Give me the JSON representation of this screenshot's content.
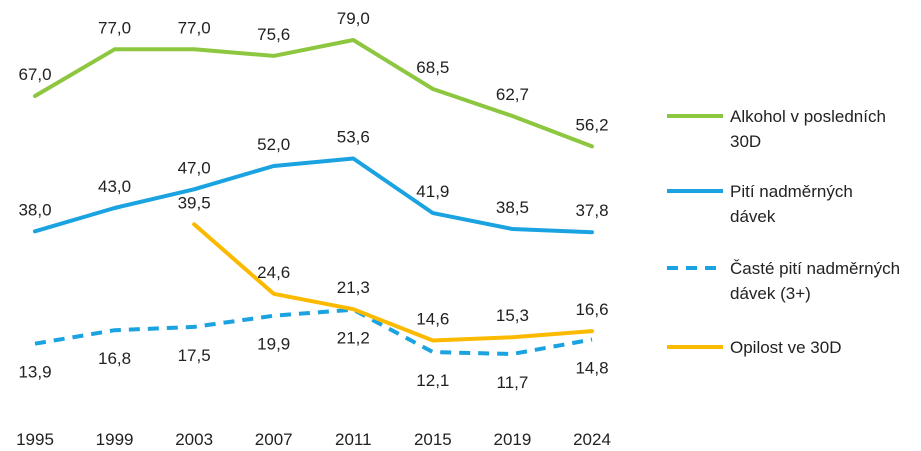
{
  "chart_data": {
    "type": "line",
    "x": [
      "1995",
      "1999",
      "2003",
      "2007",
      "2011",
      "2015",
      "2019",
      "2024"
    ],
    "ylim": [
      0,
      85
    ],
    "grid": false,
    "legend_position": "right",
    "series": [
      {
        "name": "Alkohol v posledních 30D",
        "legend_lines": [
          "Alkohol v posledních",
          "30D"
        ],
        "color": "#8DC63F",
        "dash": false,
        "label_position": "above",
        "values": [
          67.0,
          77.0,
          77.0,
          75.6,
          79.0,
          68.5,
          62.7,
          56.2
        ],
        "labels": [
          "67,0",
          "77,0",
          "77,0",
          "75,6",
          "79,0",
          "68,5",
          "62,7",
          "56,2"
        ]
      },
      {
        "name": "Pití nadměrných dávek",
        "legend_lines": [
          "Pití nadměrných",
          "dávek"
        ],
        "color": "#1AA3E0",
        "dash": false,
        "label_position": "above",
        "values": [
          38.0,
          43.0,
          47.0,
          52.0,
          53.6,
          41.9,
          38.5,
          37.8
        ],
        "labels": [
          "38,0",
          "43,0",
          "47,0",
          "52,0",
          "53,6",
          "41,9",
          "38,5",
          "37,8"
        ]
      },
      {
        "name": "Časté pití nadměrných dávek (3+)",
        "legend_lines": [
          "Časté pití nadměrných",
          "dávek (3+)"
        ],
        "color": "#1AA3E0",
        "dash": true,
        "label_position": "below",
        "values": [
          13.9,
          16.8,
          17.5,
          19.9,
          21.2,
          12.1,
          11.7,
          14.8
        ],
        "labels": [
          "13,9",
          "16,8",
          "17,5",
          "19,9",
          "21,2",
          "12,1",
          "11,7",
          "14,8"
        ]
      },
      {
        "name": "Opilost ve 30D",
        "legend_lines": [
          "Opilost ve 30D"
        ],
        "color": "#FBBA00",
        "dash": false,
        "label_position": "above",
        "values": [
          null,
          null,
          39.5,
          24.6,
          21.3,
          14.6,
          15.3,
          16.6
        ],
        "labels": [
          "",
          "",
          "39,5",
          "24,6",
          "21,3",
          "14,6",
          "15,3",
          "16,6"
        ]
      }
    ]
  }
}
